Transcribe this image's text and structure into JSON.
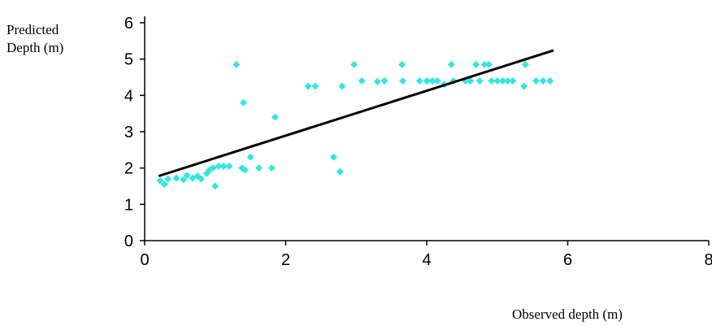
{
  "chart_data": {
    "type": "scatter",
    "ylabel_lines": [
      "Predicted",
      "Depth (m)"
    ],
    "xlabel": "Observed depth (m)",
    "xlim": [
      0,
      8
    ],
    "ylim": [
      0,
      6
    ],
    "x_ticks": [
      0,
      2,
      4,
      6,
      8
    ],
    "y_ticks": [
      0,
      1,
      2,
      3,
      4,
      5,
      6
    ],
    "grid": false,
    "legend": "none",
    "colors": {
      "points": "#33e6e0",
      "trendline": "#000000",
      "axis": "#000000"
    },
    "series": [
      {
        "points": [
          [
            0.22,
            1.65
          ],
          [
            0.28,
            1.55
          ],
          [
            0.33,
            1.7
          ],
          [
            0.45,
            1.72
          ],
          [
            0.55,
            1.68
          ],
          [
            0.6,
            1.8
          ],
          [
            0.68,
            1.72
          ],
          [
            0.75,
            1.78
          ],
          [
            0.8,
            1.7
          ],
          [
            0.88,
            1.85
          ],
          [
            0.92,
            1.95
          ],
          [
            0.97,
            2.0
          ],
          [
            1.0,
            1.5
          ],
          [
            1.05,
            2.05
          ],
          [
            1.12,
            2.05
          ],
          [
            1.2,
            2.05
          ],
          [
            1.3,
            4.85
          ],
          [
            1.38,
            2.0
          ],
          [
            1.4,
            3.8
          ],
          [
            1.42,
            1.95
          ],
          [
            1.5,
            2.3
          ],
          [
            1.62,
            2.0
          ],
          [
            1.8,
            2.0
          ],
          [
            1.85,
            3.4
          ],
          [
            2.32,
            4.25
          ],
          [
            2.42,
            4.25
          ],
          [
            2.68,
            2.3
          ],
          [
            2.77,
            1.9
          ],
          [
            2.8,
            4.25
          ],
          [
            2.97,
            4.85
          ],
          [
            3.08,
            4.4
          ],
          [
            3.3,
            4.38
          ],
          [
            3.4,
            4.4
          ],
          [
            3.65,
            4.85
          ],
          [
            3.66,
            4.4
          ],
          [
            3.9,
            4.4
          ],
          [
            4.0,
            4.4
          ],
          [
            4.08,
            4.4
          ],
          [
            4.15,
            4.4
          ],
          [
            4.25,
            4.3
          ],
          [
            4.35,
            4.85
          ],
          [
            4.38,
            4.4
          ],
          [
            4.55,
            4.4
          ],
          [
            4.62,
            4.4
          ],
          [
            4.7,
            4.85
          ],
          [
            4.75,
            4.4
          ],
          [
            4.82,
            4.85
          ],
          [
            4.88,
            4.85
          ],
          [
            4.92,
            4.4
          ],
          [
            5.0,
            4.4
          ],
          [
            5.08,
            4.4
          ],
          [
            5.15,
            4.4
          ],
          [
            5.22,
            4.4
          ],
          [
            5.38,
            4.25
          ],
          [
            5.4,
            4.85
          ],
          [
            5.55,
            4.4
          ],
          [
            5.65,
            4.4
          ],
          [
            5.75,
            4.4
          ]
        ]
      }
    ],
    "trendline": {
      "x": [
        0.2,
        5.8
      ],
      "y": [
        1.78,
        5.24
      ]
    }
  }
}
